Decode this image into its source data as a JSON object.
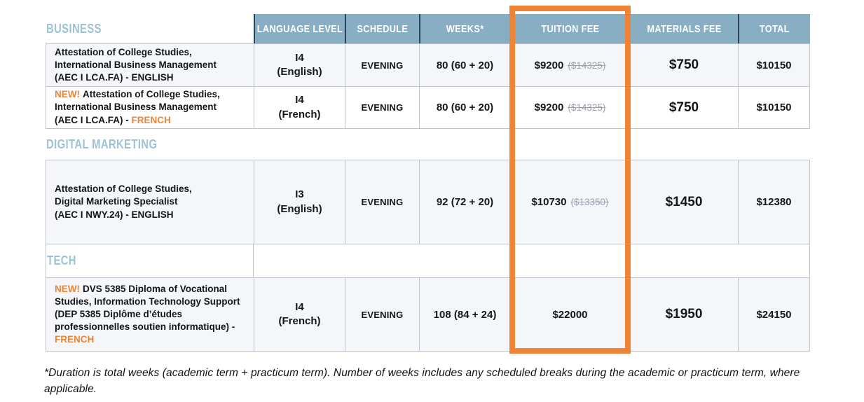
{
  "header": {
    "columns": [
      "LANGUAGE LEVEL",
      "SCHEDULE",
      "WEEKS*",
      "TUITION FEE",
      "MATERIALS FEE",
      "TOTAL"
    ]
  },
  "sections": [
    {
      "label": "BUSINESS",
      "rows": [
        {
          "new_badge": "",
          "program_body": "Attestation of College Studies,\nInternational Business Management\n(AEC I LCA.FA) - ",
          "program_lang": "ENGLISH",
          "language_level": "I4\n(English)",
          "schedule": "EVENING",
          "weeks": "80 (60 + 20)",
          "tuition": "$9200",
          "tuition_old": "($14325)",
          "materials_fee": "$750",
          "total": "$10150"
        },
        {
          "new_badge": "NEW!",
          "program_body": "Attestation of College Studies,\nInternational Business Management\n(AEC I LCA.FA) - ",
          "program_lang": "FRENCH",
          "language_level": "I4\n(French)",
          "schedule": "EVENING",
          "weeks": "80 (60 + 20)",
          "tuition": "$9200",
          "tuition_old": "($14325)",
          "materials_fee": "$750",
          "total": "$10150"
        }
      ]
    },
    {
      "label": "DIGITAL MARKETING",
      "rows": [
        {
          "new_badge": "",
          "program_body": "Attestation of College Studies,\nDigital Marketing Specialist\n(AEC I NWY.24) - ",
          "program_lang": "ENGLISH",
          "language_level": "I3\n(English)",
          "schedule": "EVENING",
          "weeks": "92 (72 + 20)",
          "tuition": "$10730",
          "tuition_old": "($13350)",
          "materials_fee": "$1450",
          "total": "$12380"
        }
      ]
    },
    {
      "label": "TECH",
      "rows": [
        {
          "new_badge": "NEW!",
          "program_body": "DVS 5385 Diploma of Vocational\nStudies, Information Technology Support\n(DEP 5385 Diplôme d’études\nprofessionnelles soutien informatique) -\n",
          "program_lang": "FRENCH",
          "language_level": "I4\n(French)",
          "schedule": "EVENING",
          "weeks": "108 (84 + 24)",
          "tuition": "$22000",
          "tuition_old": "",
          "materials_fee": "$1950",
          "total": "$24150"
        }
      ]
    }
  ],
  "footnote": "*Duration is total weeks (academic term + practicum term). Number of weeks includes any scheduled breaks during the academic or practicum term, where\napplicable.",
  "colors": {
    "header_bg": "#88AEC4",
    "header_divider": "#2D4356",
    "highlight_orange": "#EF8434",
    "section_label_blue": "#9CC3D6",
    "row_alt_bg": "#F5F6FA",
    "border_gray": "#BFC4CC",
    "strike_gray": "#9CA1AB"
  }
}
